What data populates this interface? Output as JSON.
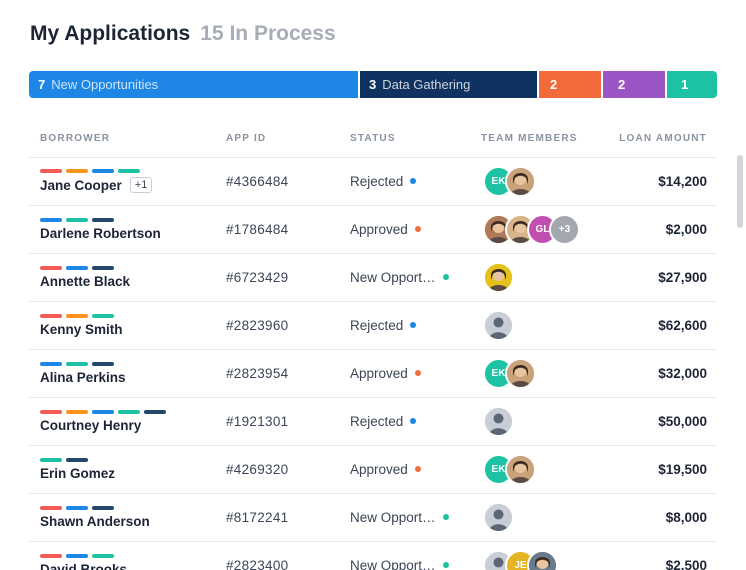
{
  "header": {
    "title": "My Applications",
    "subtitle": "15 In Process"
  },
  "pipeline": [
    {
      "count": "7",
      "label": "New Opportunities",
      "color": "#1e86e5"
    },
    {
      "count": "3",
      "label": "Data Gathering",
      "color": "#0f3260"
    },
    {
      "count": "2",
      "label": "",
      "color": "#f26a3b"
    },
    {
      "count": "2",
      "label": "",
      "color": "#9b55c4"
    },
    {
      "count": "1",
      "label": "",
      "color": "#1cc2a3"
    }
  ],
  "table": {
    "headers": {
      "borrower": "BORROWER",
      "app_id": "APP ID",
      "status": "STATUS",
      "team": "TEAM MEMBERS",
      "amount": "LOAN AMOUNT"
    },
    "rows": [
      {
        "name": "Jane Cooper",
        "more": "+1",
        "tags": [
          "#f25c54",
          "#f7941d",
          "#1e86e5",
          "#1cc2a3"
        ],
        "app_id": "#4366484",
        "status": "Rejected",
        "status_color": "#1e86e5",
        "team": [
          {
            "type": "initials",
            "text": "EK",
            "color": "#1cc2a3"
          },
          {
            "type": "photo",
            "color": "#c8a27a"
          }
        ],
        "amount": "$14,200"
      },
      {
        "name": "Darlene Robertson",
        "more": "",
        "tags": [
          "#1e86e5",
          "#1cc2a3",
          "#23476b"
        ],
        "app_id": "#1786484",
        "status": "Approved",
        "status_color": "#f26a3b",
        "team": [
          {
            "type": "photo",
            "color": "#b07a5a"
          },
          {
            "type": "photo",
            "color": "#d8b48a"
          },
          {
            "type": "initials",
            "text": "GL",
            "color": "#c04fb0"
          },
          {
            "type": "count",
            "text": "+3",
            "color": "#a3a8b0"
          }
        ],
        "amount": "$2,000"
      },
      {
        "name": "Annette Black",
        "more": "",
        "tags": [
          "#f25c54",
          "#1e86e5",
          "#23476b"
        ],
        "app_id": "#6723429",
        "status": "New Opport…",
        "status_color": "#1cc2a3",
        "team": [
          {
            "type": "photo",
            "color": "#e6c11a"
          }
        ],
        "amount": "$27,900"
      },
      {
        "name": "Kenny Smith",
        "more": "",
        "tags": [
          "#f25c54",
          "#f7941d",
          "#1cc2a3"
        ],
        "app_id": "#2823960",
        "status": "Rejected",
        "status_color": "#1e86e5",
        "team": [
          {
            "type": "default",
            "color": "#c9ced6"
          }
        ],
        "amount": "$62,600"
      },
      {
        "name": "Alina Perkins",
        "more": "",
        "tags": [
          "#1e86e5",
          "#1cc2a3",
          "#23476b"
        ],
        "app_id": "#2823954",
        "status": "Approved",
        "status_color": "#f26a3b",
        "team": [
          {
            "type": "initials",
            "text": "EK",
            "color": "#1cc2a3"
          },
          {
            "type": "photo",
            "color": "#c8a27a"
          }
        ],
        "amount": "$32,000"
      },
      {
        "name": "Courtney Henry",
        "more": "",
        "tags": [
          "#f25c54",
          "#f7941d",
          "#1e86e5",
          "#1cc2a3",
          "#23476b"
        ],
        "app_id": "#1921301",
        "status": "Rejected",
        "status_color": "#1e86e5",
        "team": [
          {
            "type": "default",
            "color": "#c9ced6"
          }
        ],
        "amount": "$50,000"
      },
      {
        "name": "Erin Gomez",
        "more": "",
        "tags": [
          "#1cc2a3",
          "#23476b"
        ],
        "app_id": "#4269320",
        "status": "Approved",
        "status_color": "#f26a3b",
        "team": [
          {
            "type": "initials",
            "text": "EK",
            "color": "#1cc2a3"
          },
          {
            "type": "photo",
            "color": "#c8a27a"
          }
        ],
        "amount": "$19,500"
      },
      {
        "name": "Shawn Anderson",
        "more": "",
        "tags": [
          "#f25c54",
          "#1e86e5",
          "#23476b"
        ],
        "app_id": "#8172241",
        "status": "New Opport…",
        "status_color": "#1cc2a3",
        "team": [
          {
            "type": "default",
            "color": "#c9ced6"
          }
        ],
        "amount": "$8,000"
      },
      {
        "name": "David Brooks",
        "more": "",
        "tags": [
          "#f25c54",
          "#1e86e5",
          "#1cc2a3"
        ],
        "app_id": "#2823400",
        "status": "New Opport…",
        "status_color": "#1cc2a3",
        "team": [
          {
            "type": "default",
            "color": "#c9ced6"
          },
          {
            "type": "initials",
            "text": "JE",
            "color": "#e6b422"
          },
          {
            "type": "photo",
            "color": "#6b7a8a"
          }
        ],
        "amount": "$2,500"
      }
    ]
  }
}
